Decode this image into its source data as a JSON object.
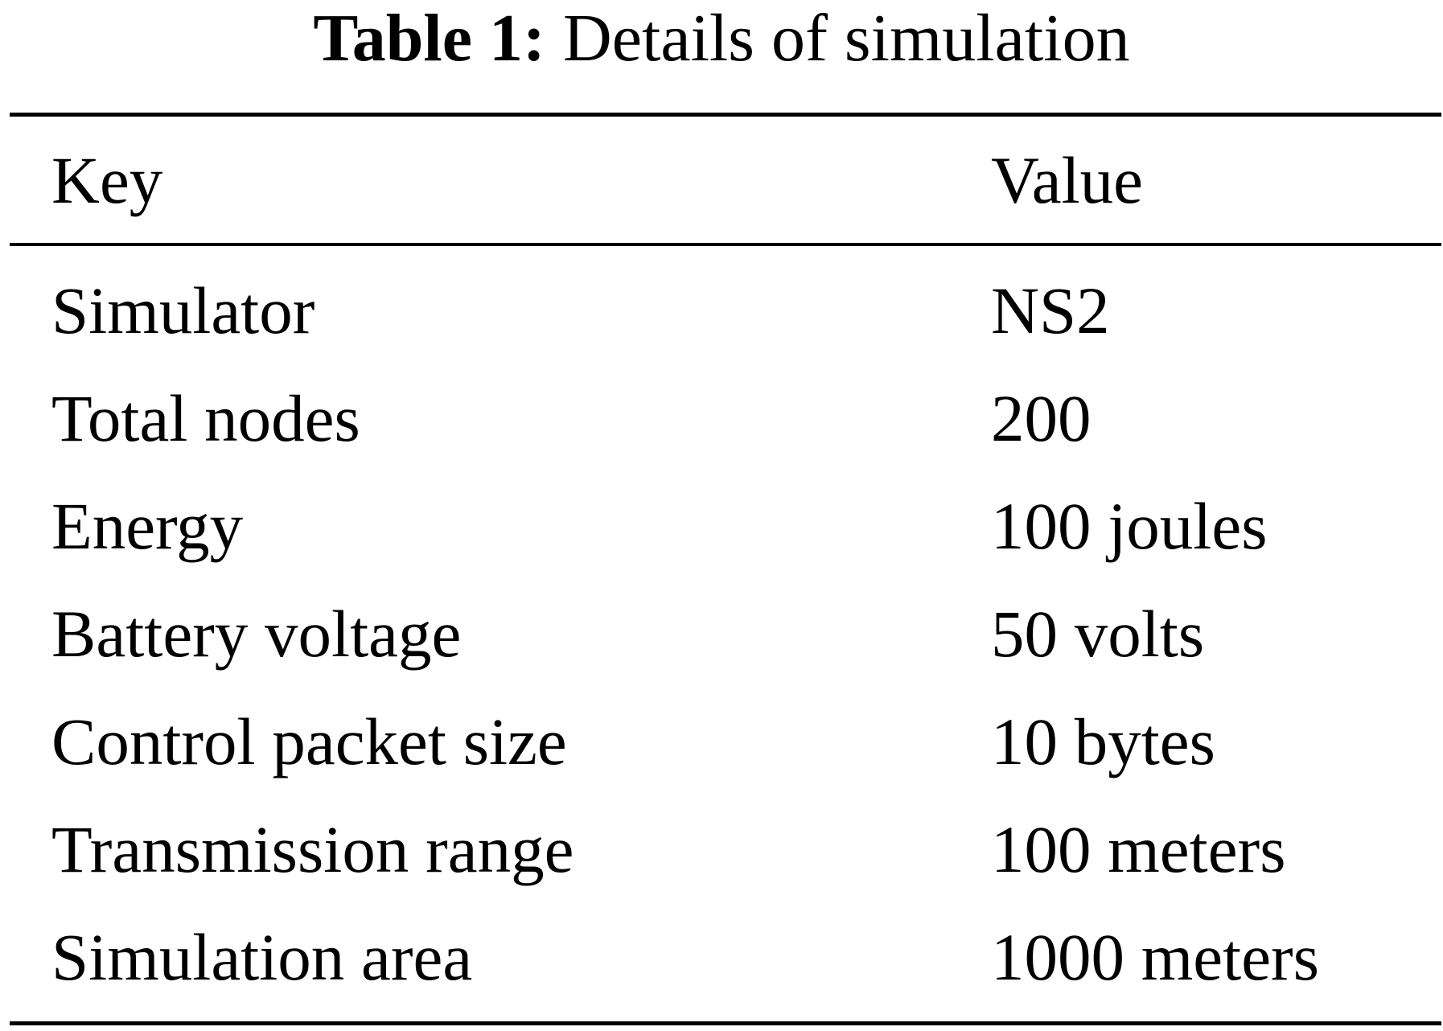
{
  "caption": {
    "label": "Table 1:",
    "text": "Details of simulation"
  },
  "table": {
    "columns": [
      "Key",
      "Value"
    ],
    "rows": [
      {
        "key": "Simulator",
        "value": "NS2"
      },
      {
        "key": "Total nodes",
        "value": "200"
      },
      {
        "key": "Energy",
        "value": "100 joules"
      },
      {
        "key": "Battery voltage",
        "value": "50 volts"
      },
      {
        "key": "Control packet size",
        "value": "10 bytes"
      },
      {
        "key": "Transmission range",
        "value": "100 meters"
      },
      {
        "key": "Simulation area",
        "value": "1000 meters"
      }
    ]
  }
}
